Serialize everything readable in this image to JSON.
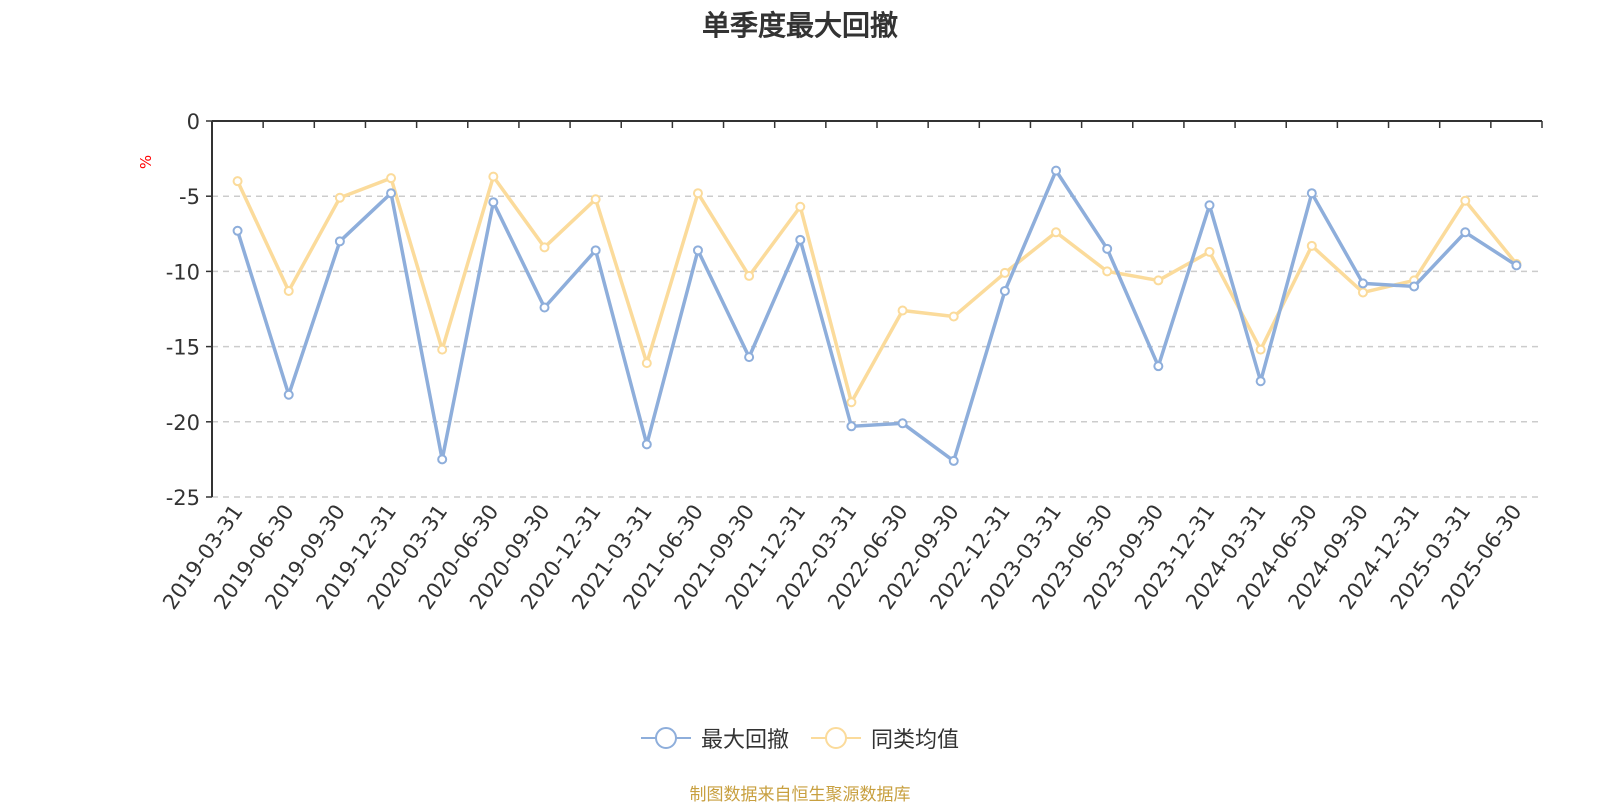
{
  "chart_data": {
    "type": "line",
    "title": "单季度最大回撤",
    "ylabel": "%",
    "xlabel": "",
    "ylim": [
      -25,
      0
    ],
    "yticks": [
      0,
      -5,
      -10,
      -15,
      -20,
      -25
    ],
    "grid": true,
    "legend_position": "bottom",
    "categories": [
      "2019-03-31",
      "2019-06-30",
      "2019-09-30",
      "2019-12-31",
      "2020-03-31",
      "2020-06-30",
      "2020-09-30",
      "2020-12-31",
      "2021-03-31",
      "2021-06-30",
      "2021-09-30",
      "2021-12-31",
      "2022-03-31",
      "2022-06-30",
      "2022-09-30",
      "2022-12-31",
      "2023-03-31",
      "2023-06-30",
      "2023-09-30",
      "2023-12-31",
      "2024-03-31",
      "2024-06-30",
      "2024-09-30",
      "2024-12-31",
      "2025-03-31",
      "2025-06-30"
    ],
    "series": [
      {
        "name": "最大回撤",
        "color": "#8eaedb",
        "values": [
          -7.3,
          -18.2,
          -8.0,
          -4.8,
          -22.5,
          -5.4,
          -12.4,
          -8.6,
          -21.5,
          -8.6,
          -15.7,
          -7.9,
          -20.3,
          -20.1,
          -22.6,
          -11.3,
          -3.3,
          -8.5,
          -16.3,
          -5.6,
          -17.3,
          -4.8,
          -10.8,
          -11.0,
          -7.4,
          -9.6
        ]
      },
      {
        "name": "同类均值",
        "color": "#fbdb9b",
        "values": [
          -4.0,
          -11.3,
          -5.1,
          -3.8,
          -15.2,
          -3.7,
          -8.4,
          -5.2,
          -16.1,
          -4.8,
          -10.3,
          -5.7,
          -18.7,
          -12.6,
          -13.0,
          -10.1,
          -7.4,
          -10.0,
          -10.6,
          -8.7,
          -15.2,
          -8.3,
          -11.4,
          -10.6,
          -5.3,
          -9.5
        ]
      }
    ]
  },
  "footer": {
    "source": "制图数据来自恒生聚源数据库"
  }
}
